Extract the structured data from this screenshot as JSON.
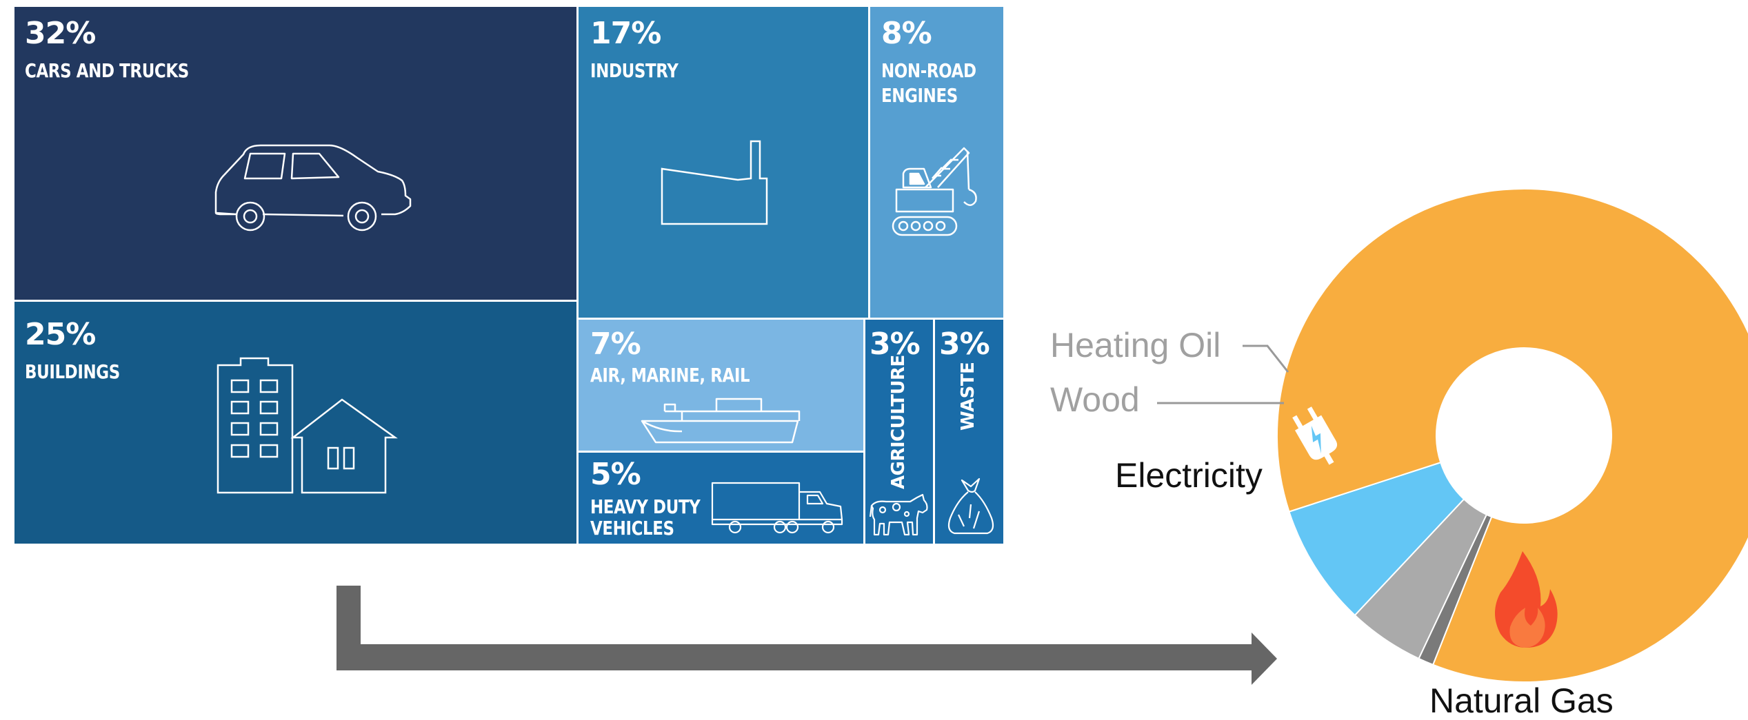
{
  "chart_data": [
    {
      "type": "treemap",
      "items": [
        {
          "pct_label": "32%",
          "label": "CARS AND TRUCKS",
          "value": 32,
          "color": "#22385f",
          "icon": "car-icon"
        },
        {
          "pct_label": "25%",
          "label": "BUILDINGS",
          "value": 25,
          "color": "#155a88",
          "icon": "buildings-icon"
        },
        {
          "pct_label": "17%",
          "label": "INDUSTRY",
          "value": 17,
          "color": "#2b7fb1",
          "icon": "factory-icon"
        },
        {
          "pct_label": "8%",
          "label": "NON-ROAD ENGINES",
          "label_lines": [
            "NON-ROAD",
            "ENGINES"
          ],
          "value": 8,
          "color": "#569fd1",
          "icon": "crane-icon"
        },
        {
          "pct_label": "7%",
          "label": "AIR, MARINE, RAIL",
          "value": 7,
          "color": "#7bb6e3",
          "icon": "ship-icon"
        },
        {
          "pct_label": "5%",
          "label": "HEAVY DUTY VEHICLES",
          "label_lines": [
            "HEAVY DUTY",
            "VEHICLES"
          ],
          "value": 5,
          "color": "#1a6ca8",
          "icon": "truck-icon"
        },
        {
          "pct_label": "3%",
          "label": "AGRICULTURE",
          "value": 3,
          "color": "#1a6ca8",
          "icon": "cow-icon"
        },
        {
          "pct_label": "3%",
          "label": "WASTE",
          "value": 3,
          "color": "#1a6ca8",
          "icon": "trash-bag-icon"
        }
      ]
    },
    {
      "type": "pie",
      "slices": [
        {
          "label": "Natural Gas",
          "value": 86,
          "color": "#f8ad3f",
          "icon": "flame-icon"
        },
        {
          "label": "Electricity",
          "value": 8,
          "color": "#63c6f5",
          "icon": "plug-icon"
        },
        {
          "label": "Wood",
          "value": 5,
          "color": "#aaaaaa"
        },
        {
          "label": "Heating Oil",
          "value": 1,
          "color": "#7a7a7a"
        }
      ]
    }
  ],
  "arrow_color": "#666666"
}
